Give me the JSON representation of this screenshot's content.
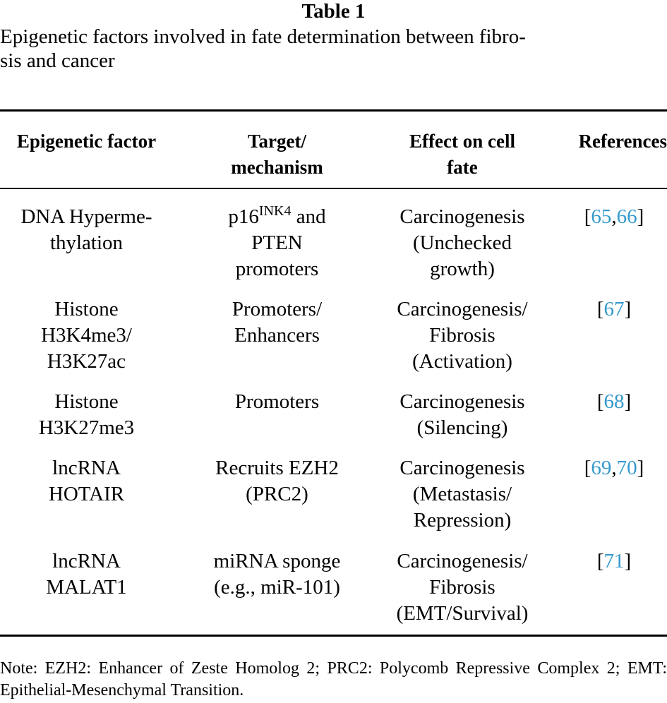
{
  "table_label": "Table 1",
  "caption": "Epigenetic factors involved in fate determination between fibro-\nsis and cancer",
  "headers": {
    "factor": "Epigenetic factor",
    "target": "Target/\nmechanism",
    "effect": "Effect on cell\nfate",
    "references": "References"
  },
  "rows": [
    {
      "factor": "DNA Hyperme-\nthylation",
      "target_pre": "p16",
      "target_sup": "INK4",
      "target_post": " and\nPTEN\npromoters",
      "effect": "Carcinogenesis\n(Unchecked\ngrowth)",
      "refs": [
        "65",
        "66"
      ]
    },
    {
      "factor": "Histone\nH3K4me3/\nH3K27ac",
      "target": "Promoters/\nEnhancers",
      "effect": "Carcinogenesis/\nFibrosis\n(Activation)",
      "refs": [
        "67"
      ]
    },
    {
      "factor": "Histone\nH3K27me3",
      "target": "Promoters",
      "effect": "Carcinogenesis\n(Silencing)",
      "refs": [
        "68"
      ]
    },
    {
      "factor": "lncRNA\nHOTAIR",
      "target": "Recruits EZH2\n(PRC2)",
      "effect": "Carcinogenesis\n(Metastasis/\nRepression)",
      "refs": [
        "69",
        "70"
      ]
    },
    {
      "factor": "lncRNA\nMALAT1",
      "target": "miRNA sponge\n(e.g., miR-101)",
      "effect": "Carcinogenesis/\nFibrosis\n(EMT/Survival)",
      "refs": [
        "71"
      ]
    }
  ],
  "note": "Note: EZH2: Enhancer of Zeste Homolog 2; PRC2: Polycomb Repressive Complex 2; EMT: Epithelial-Mesenchymal Transition.",
  "colors": {
    "text": "#000000",
    "link": "#3399cc"
  }
}
